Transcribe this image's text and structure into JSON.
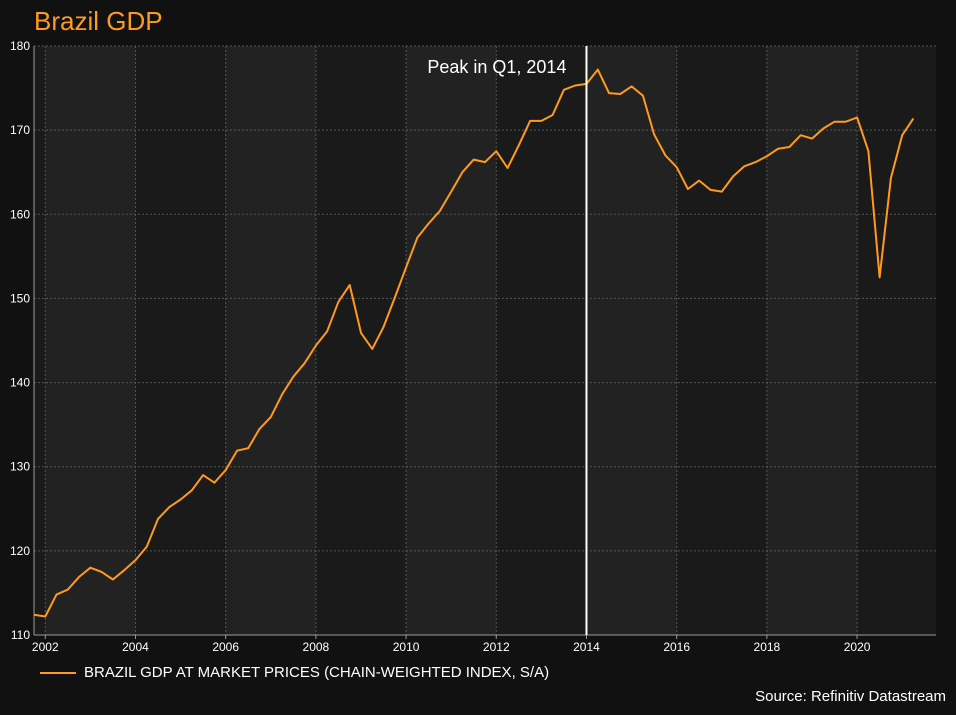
{
  "chart_data": {
    "type": "line",
    "title": "Brazil GDP",
    "xlabel": "",
    "ylabel": "",
    "xlim": [
      2001.75,
      2021.75
    ],
    "ylim": [
      110,
      180
    ],
    "x_ticks": [
      2002,
      2004,
      2006,
      2008,
      2010,
      2012,
      2014,
      2016,
      2018,
      2020
    ],
    "x_tick_labels": [
      "2002",
      "2004",
      "2006",
      "2008",
      "2010",
      "2012",
      "2014",
      "2016",
      "2018",
      "2020"
    ],
    "y_ticks": [
      110,
      120,
      130,
      140,
      150,
      160,
      170,
      180
    ],
    "y_tick_labels": [
      "110",
      "120",
      "130",
      "140",
      "150",
      "160",
      "170",
      "180"
    ],
    "grid": true,
    "legend_position": "bottom-left",
    "series": [
      {
        "name": "BRAZIL GDP AT MARKET PRICES (CHAIN-WEIGHTED INDEX, S/A)",
        "color": "#ff9a1f",
        "x": [
          2001.75,
          2002.0,
          2002.25,
          2002.5,
          2002.75,
          2003.0,
          2003.25,
          2003.5,
          2003.75,
          2004.0,
          2004.25,
          2004.5,
          2004.75,
          2005.0,
          2005.25,
          2005.5,
          2005.75,
          2006.0,
          2006.25,
          2006.5,
          2006.75,
          2007.0,
          2007.25,
          2007.5,
          2007.75,
          2008.0,
          2008.25,
          2008.5,
          2008.75,
          2009.0,
          2009.25,
          2009.5,
          2009.75,
          2010.0,
          2010.25,
          2010.5,
          2010.75,
          2011.0,
          2011.25,
          2011.5,
          2011.75,
          2012.0,
          2012.25,
          2012.5,
          2012.75,
          2013.0,
          2013.25,
          2013.5,
          2013.75,
          2014.0,
          2014.25,
          2014.5,
          2014.75,
          2015.0,
          2015.25,
          2015.5,
          2015.75,
          2016.0,
          2016.25,
          2016.5,
          2016.75,
          2017.0,
          2017.25,
          2017.5,
          2017.75,
          2018.0,
          2018.25,
          2018.5,
          2018.75,
          2019.0,
          2019.25,
          2019.5,
          2019.75,
          2020.0,
          2020.25,
          2020.5,
          2020.75,
          2021.0,
          2021.25
        ],
        "values": [
          112.4,
          112.2,
          114.8,
          115.4,
          116.9,
          118.0,
          117.5,
          116.6,
          117.7,
          118.9,
          120.5,
          123.8,
          125.2,
          126.1,
          127.2,
          129.0,
          128.1,
          129.6,
          131.9,
          132.2,
          134.5,
          135.9,
          138.6,
          140.7,
          142.3,
          144.4,
          146.1,
          149.6,
          151.6,
          145.9,
          144.0,
          146.6,
          150.1,
          153.7,
          157.2,
          158.9,
          160.4,
          162.7,
          165.0,
          166.5,
          166.2,
          167.5,
          165.5,
          168.2,
          171.1,
          171.1,
          171.8,
          174.8,
          175.3,
          175.5,
          177.2,
          174.4,
          174.3,
          175.2,
          174.1,
          169.5,
          167.0,
          165.6,
          163.0,
          164.0,
          162.9,
          162.7,
          164.5,
          165.7,
          166.2,
          166.9,
          167.8,
          168.0,
          169.4,
          169.0,
          170.2,
          171.0,
          171.0,
          171.5,
          167.5,
          152.5,
          164.3,
          169.4,
          171.4
        ]
      }
    ],
    "annotations": [
      {
        "text": "Peak in Q1, 2014",
        "x": 2014.0,
        "kind": "vertical-line",
        "color": "#ffffff"
      }
    ],
    "source": "Source: Refinitiv Datastream"
  }
}
